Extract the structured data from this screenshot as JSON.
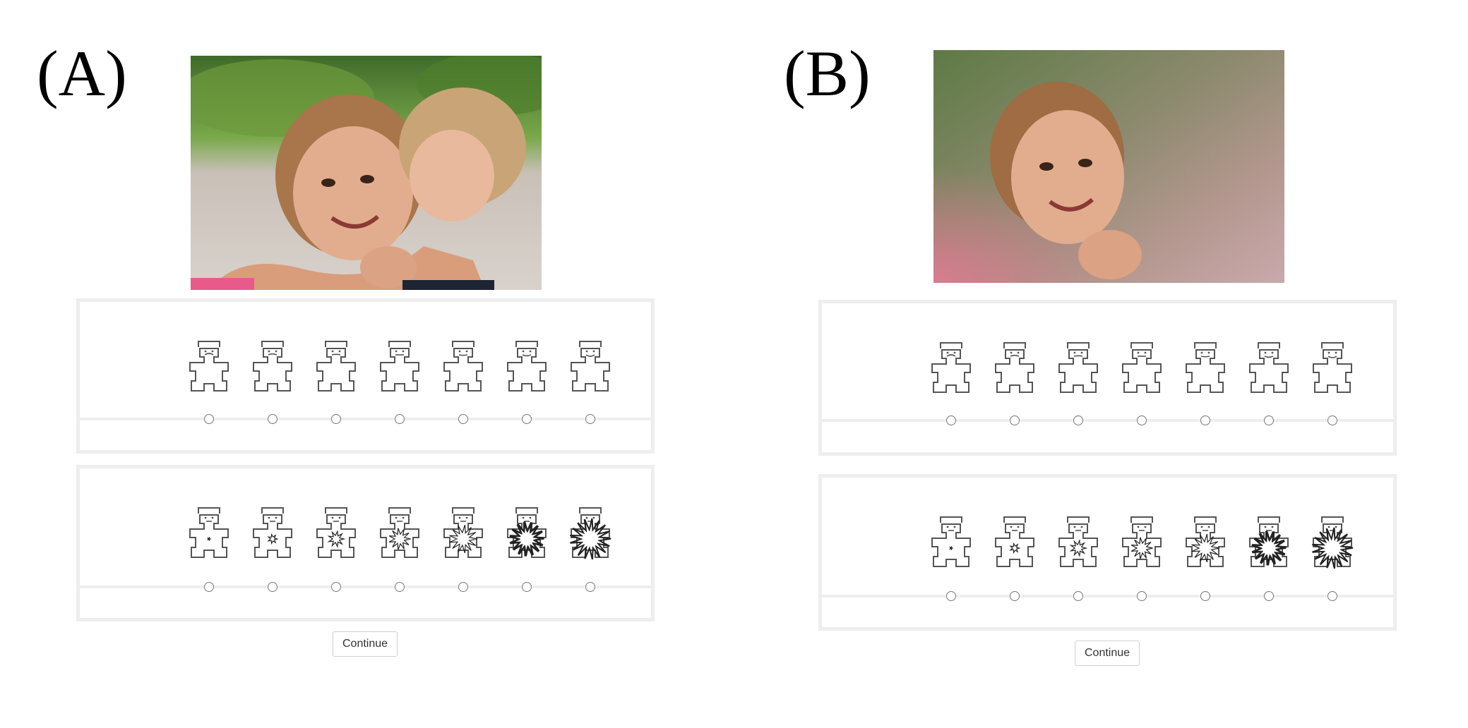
{
  "panels": [
    {
      "label": "(A)",
      "photo_alt": "photo",
      "valence_scale": {
        "points": 7,
        "selected": null
      },
      "arousal_scale": {
        "points": 7,
        "selected": null
      },
      "continue_label": "Continue"
    },
    {
      "label": "(B)",
      "photo_alt": "photo",
      "valence_scale": {
        "points": 7,
        "selected": null
      },
      "arousal_scale": {
        "points": 7,
        "selected": null
      },
      "continue_label": "Continue"
    }
  ],
  "icons": {
    "valence": "sam-valence-icon",
    "arousal": "sam-arousal-icon"
  },
  "colors": {
    "box_border": "#eeeeee",
    "radio_border": "#777777",
    "figure_stroke": "#555555"
  }
}
